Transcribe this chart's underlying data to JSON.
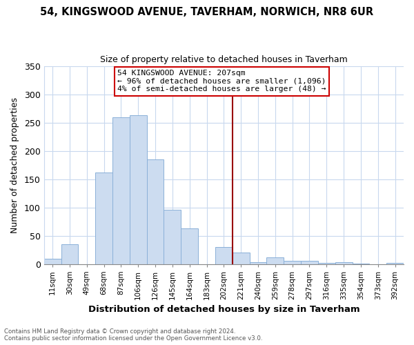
{
  "title": "54, KINGSWOOD AVENUE, TAVERHAM, NORWICH, NR8 6UR",
  "subtitle": "Size of property relative to detached houses in Taverham",
  "xlabel": "Distribution of detached houses by size in Taverham",
  "ylabel": "Number of detached properties",
  "footnote1": "Contains HM Land Registry data © Crown copyright and database right 2024.",
  "footnote2": "Contains public sector information licensed under the Open Government Licence v3.0.",
  "bin_labels": [
    "11sqm",
    "30sqm",
    "49sqm",
    "68sqm",
    "87sqm",
    "106sqm",
    "126sqm",
    "145sqm",
    "164sqm",
    "183sqm",
    "202sqm",
    "221sqm",
    "240sqm",
    "259sqm",
    "278sqm",
    "297sqm",
    "316sqm",
    "335sqm",
    "354sqm",
    "373sqm",
    "392sqm"
  ],
  "bar_values": [
    9,
    35,
    0,
    162,
    259,
    263,
    185,
    96,
    63,
    0,
    30,
    20,
    3,
    11,
    5,
    6,
    2,
    3,
    1,
    0,
    2
  ],
  "bar_color": "#ccdcf0",
  "bar_edge_color": "#8ab0d8",
  "vline_x_index": 10.5,
  "vline_color": "#990000",
  "annotation_title": "54 KINGSWOOD AVENUE: 207sqm",
  "annotation_line1": "← 96% of detached houses are smaller (1,096)",
  "annotation_line2": "4% of semi-detached houses are larger (48) →",
  "annotation_box_color": "#ffffff",
  "annotation_box_edge": "#cc0000",
  "ylim": [
    0,
    350
  ],
  "yticks": [
    0,
    50,
    100,
    150,
    200,
    250,
    300,
    350
  ],
  "background_color": "#ffffff",
  "grid_color": "#c8d8ee"
}
